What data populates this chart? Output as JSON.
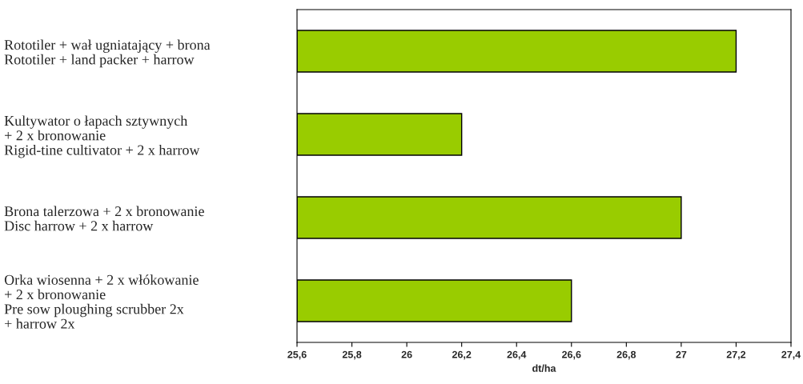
{
  "chart_data": {
    "type": "bar",
    "orientation": "horizontal",
    "xlabel": "dt/ha",
    "categories": [
      "Rototiler + wał ugniatający + brona\nRototiler + land packer + harrow",
      "Kultywator o łapach sztywnych\n+ 2 x bronowanie\nRigid-tine cultivator + 2 x harrow",
      "Brona talerzowa + 2 x bronowanie\nDisc harrow + 2 x harrow",
      "Orka wiosenna + 2 x włókowanie\n+ 2 x bronowanie\nPre sow ploughing scrubber 2x\n+ harrow 2x"
    ],
    "values": [
      27.2,
      26.2,
      27.0,
      26.6
    ],
    "color": "#99cc00",
    "xlim": [
      25.6,
      27.4
    ],
    "xticks": [
      {
        "value": 25.6,
        "label": "25,6"
      },
      {
        "value": 25.8,
        "label": "25,8"
      },
      26,
      {
        "value": 26.2,
        "label": "26,2"
      },
      {
        "value": 26.4,
        "label": "26,4"
      },
      {
        "value": 26.6,
        "label": "26,6"
      },
      {
        "value": 26.8,
        "label": "26,8"
      },
      27,
      {
        "value": 27.2,
        "label": "27,2"
      },
      {
        "value": 27.4,
        "label": "27,4"
      }
    ],
    "grid": false,
    "legend": false
  }
}
